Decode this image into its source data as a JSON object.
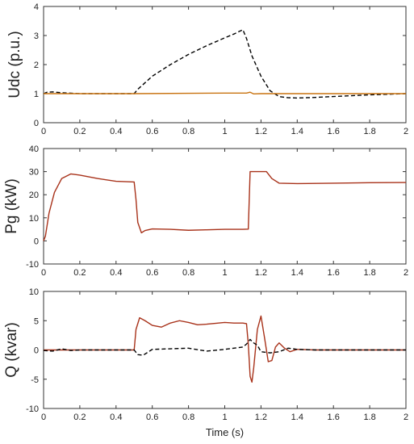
{
  "chart_data": [
    {
      "type": "line",
      "ylabel": "Udc (p.u.)",
      "xlim": [
        0,
        2
      ],
      "ylim": [
        0,
        4
      ],
      "xticks": [
        0,
        0.2,
        0.4,
        0.6,
        0.8,
        1,
        1.2,
        1.4,
        1.6,
        1.8,
        2
      ],
      "yticks": [
        0,
        1,
        2,
        3,
        4
      ],
      "series": [
        {
          "style": "dashed",
          "color": "#000000",
          "x": [
            0,
            0.02,
            0.05,
            0.1,
            0.2,
            0.3,
            0.4,
            0.5,
            0.52,
            0.6,
            0.7,
            0.8,
            0.9,
            1.0,
            1.05,
            1.1,
            1.12,
            1.15,
            1.2,
            1.25,
            1.3,
            1.35,
            1.4,
            1.5,
            1.6,
            1.7,
            1.8,
            1.9,
            2.0
          ],
          "y": [
            1.0,
            1.05,
            1.06,
            1.03,
            1.0,
            1.0,
            1.0,
            1.0,
            1.15,
            1.6,
            2.0,
            2.35,
            2.65,
            2.92,
            3.05,
            3.2,
            2.9,
            2.3,
            1.6,
            1.1,
            0.9,
            0.86,
            0.85,
            0.87,
            0.9,
            0.93,
            0.96,
            0.98,
            1.0
          ]
        },
        {
          "style": "solid",
          "color": "#c8720f",
          "x": [
            0,
            0.5,
            1.0,
            1.12,
            1.14,
            1.16,
            1.2,
            1.5,
            2.0
          ],
          "y": [
            1.0,
            1.0,
            1.02,
            1.02,
            1.05,
            0.99,
            1.0,
            1.0,
            1.0
          ]
        }
      ]
    },
    {
      "type": "line",
      "ylabel": "Pg (kW)",
      "xlim": [
        0,
        2
      ],
      "ylim": [
        -10,
        40
      ],
      "xticks": [
        0,
        0.2,
        0.4,
        0.6,
        0.8,
        1,
        1.2,
        1.4,
        1.6,
        1.8,
        2
      ],
      "yticks": [
        -10,
        0,
        10,
        20,
        30,
        40
      ],
      "series": [
        {
          "style": "solid",
          "color": "#a8321a",
          "x": [
            0,
            0.01,
            0.03,
            0.06,
            0.1,
            0.15,
            0.2,
            0.3,
            0.4,
            0.5,
            0.51,
            0.52,
            0.54,
            0.56,
            0.6,
            0.7,
            0.8,
            0.9,
            1.0,
            1.1,
            1.13,
            1.14,
            1.2,
            1.23,
            1.26,
            1.3,
            1.4,
            1.6,
            1.8,
            2.0
          ],
          "y": [
            0,
            2,
            12,
            21,
            27,
            29,
            28.5,
            27,
            25.8,
            25.5,
            18,
            8,
            3.5,
            4.5,
            5.2,
            5.0,
            4.6,
            4.8,
            5.0,
            5.0,
            5.1,
            30,
            30,
            30,
            27,
            25,
            24.8,
            25,
            25.2,
            25.3
          ]
        }
      ]
    },
    {
      "type": "line",
      "ylabel": "Q (kvar)",
      "xlabel": "Time (s)",
      "xlim": [
        0,
        2
      ],
      "ylim": [
        -10,
        10
      ],
      "xticks": [
        0,
        0.2,
        0.4,
        0.6,
        0.8,
        1,
        1.2,
        1.4,
        1.6,
        1.8,
        2
      ],
      "yticks": [
        -10,
        -5,
        0,
        5,
        10
      ],
      "series": [
        {
          "style": "solid",
          "color": "#a8321a",
          "x": [
            0,
            0.5,
            0.51,
            0.53,
            0.56,
            0.6,
            0.65,
            0.7,
            0.75,
            0.8,
            0.85,
            0.9,
            1.0,
            1.05,
            1.1,
            1.12,
            1.13,
            1.14,
            1.15,
            1.16,
            1.18,
            1.2,
            1.22,
            1.24,
            1.26,
            1.28,
            1.3,
            1.33,
            1.36,
            1.4,
            1.5,
            2.0
          ],
          "y": [
            0,
            0,
            3.5,
            5.5,
            5.0,
            4.2,
            3.9,
            4.6,
            5.0,
            4.7,
            4.3,
            4.4,
            4.7,
            4.6,
            4.6,
            4.5,
            1.0,
            -4.5,
            -5.5,
            -3.0,
            3.5,
            5.8,
            2.0,
            -2.0,
            -1.8,
            0.5,
            1.2,
            0.3,
            -0.3,
            0.1,
            0,
            0
          ]
        },
        {
          "style": "dashed",
          "color": "#000000",
          "x": [
            0,
            0.05,
            0.1,
            0.15,
            0.2,
            0.3,
            0.4,
            0.5,
            0.52,
            0.55,
            0.6,
            0.7,
            0.8,
            0.9,
            1.0,
            1.05,
            1.1,
            1.12,
            1.14,
            1.16,
            1.18,
            1.2,
            1.25,
            1.3,
            1.35,
            1.4,
            1.5,
            2.0
          ],
          "y": [
            -0.1,
            -0.2,
            0.2,
            -0.1,
            0,
            0,
            0,
            0,
            -0.8,
            -0.9,
            0.1,
            0.2,
            0.3,
            -0.2,
            0.1,
            0.3,
            0.5,
            1.0,
            1.8,
            1.2,
            0.8,
            -0.3,
            -0.5,
            -0.3,
            0.3,
            0.1,
            0,
            0
          ]
        }
      ]
    }
  ]
}
